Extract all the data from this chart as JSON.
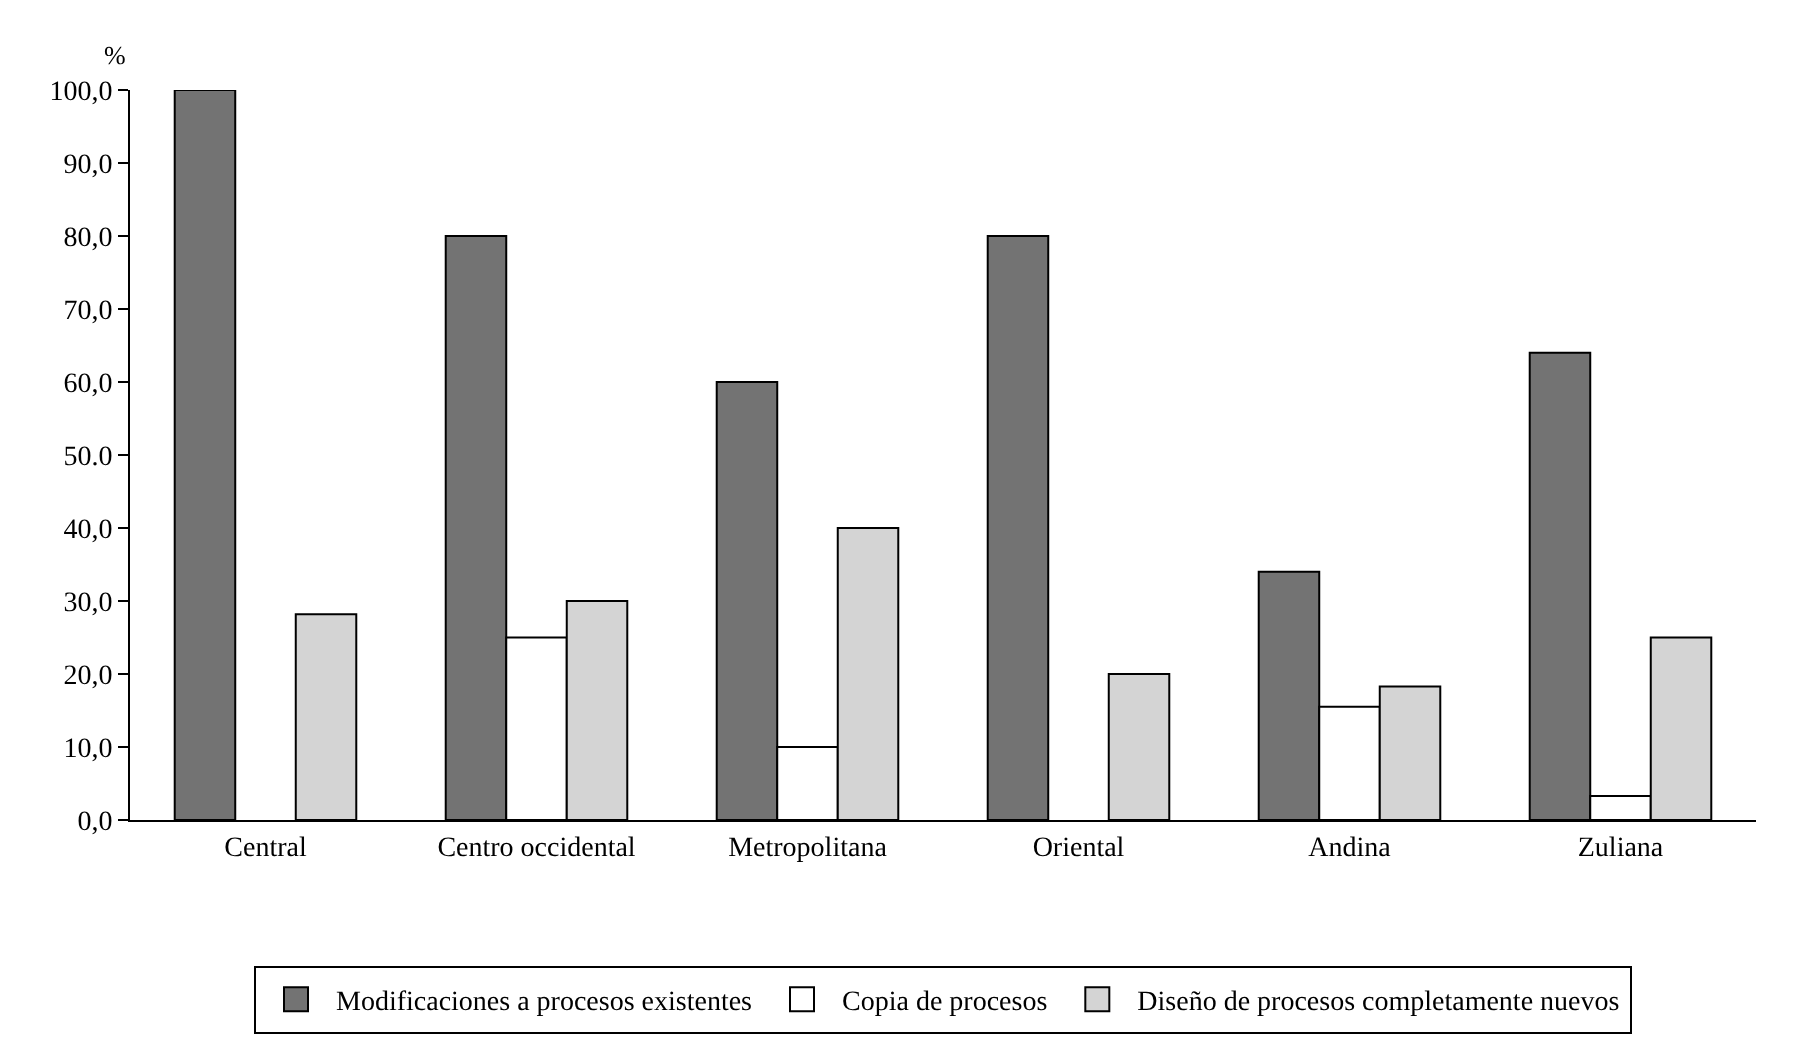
{
  "chart_data": {
    "type": "bar",
    "ylabel": "%",
    "categories": [
      "Central",
      "Centro occidental",
      "Metropolitana",
      "Oriental",
      "Andina",
      "Zuliana"
    ],
    "series": [
      {
        "name": "Modificaciones a procesos existentes",
        "color": "#737373",
        "values": [
          100,
          80,
          60,
          80,
          34,
          64
        ]
      },
      {
        "name": "Copia de procesos",
        "color": "#ffffff",
        "values": [
          null,
          25,
          10,
          null,
          15.5,
          3.3
        ]
      },
      {
        "name": "Diseño de procesos completamente nuevos",
        "color": "#d4d4d4",
        "values": [
          28.2,
          30,
          40,
          20,
          18.3,
          25
        ]
      }
    ],
    "ylim": [
      0,
      100
    ],
    "yticks": [
      {
        "value": 0,
        "label": "0,0"
      },
      {
        "value": 10,
        "label": "10,0"
      },
      {
        "value": 20,
        "label": "20,0"
      },
      {
        "value": 30,
        "label": "30,0"
      },
      {
        "value": 40,
        "label": "40,0"
      },
      {
        "value": 50,
        "label": "50.0"
      },
      {
        "value": 60,
        "label": "60,0"
      },
      {
        "value": 70,
        "label": "70,0"
      },
      {
        "value": 80,
        "label": "80,0"
      },
      {
        "value": 90,
        "label": "90,0"
      },
      {
        "value": 100,
        "label": "100,0"
      }
    ],
    "legend": "bottom"
  }
}
